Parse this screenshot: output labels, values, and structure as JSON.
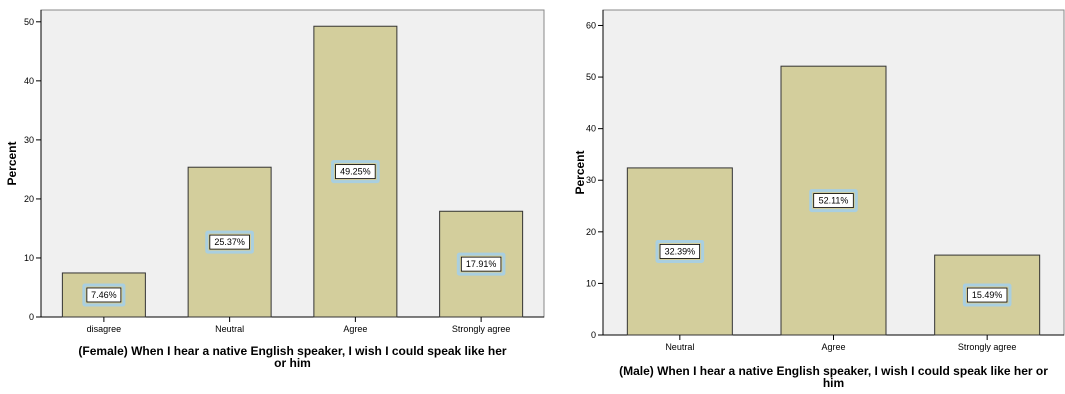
{
  "chart_data": [
    {
      "type": "bar",
      "categories": [
        "disagree",
        "Neutral",
        "Agree",
        "Strongly agree"
      ],
      "values": [
        7.46,
        25.37,
        49.25,
        17.91
      ],
      "data_labels": [
        "7.46%",
        "25.37%",
        "49.25%",
        "17.91%"
      ],
      "xlabel_lines": [
        "(Female) When I hear a native English speaker, I wish I could speak like her",
        "or him"
      ],
      "ylabel": "Percent",
      "ylim": [
        0,
        52
      ],
      "yticks": [
        0,
        10,
        20,
        30,
        40,
        50
      ],
      "grid": false,
      "plot_bg": "#f0f0f0",
      "bar_color": "#d3ce9c",
      "bar_edge": "#333333",
      "label_halo": "#a9cfe0"
    },
    {
      "type": "bar",
      "categories": [
        "Neutral",
        "Agree",
        "Strongly agree"
      ],
      "values": [
        32.39,
        52.11,
        15.49
      ],
      "data_labels": [
        "32.39%",
        "52.11%",
        "15.49%"
      ],
      "xlabel_lines": [
        "(Male) When I hear a native English speaker, I wish I could speak like her or",
        "him"
      ],
      "ylabel": "Percent",
      "ylim": [
        0,
        63
      ],
      "yticks": [
        0,
        10,
        20,
        30,
        40,
        50,
        60
      ],
      "grid": false,
      "plot_bg": "#f0f0f0",
      "bar_color": "#d3ce9c",
      "bar_edge": "#333333",
      "label_halo": "#a9cfe0"
    }
  ]
}
